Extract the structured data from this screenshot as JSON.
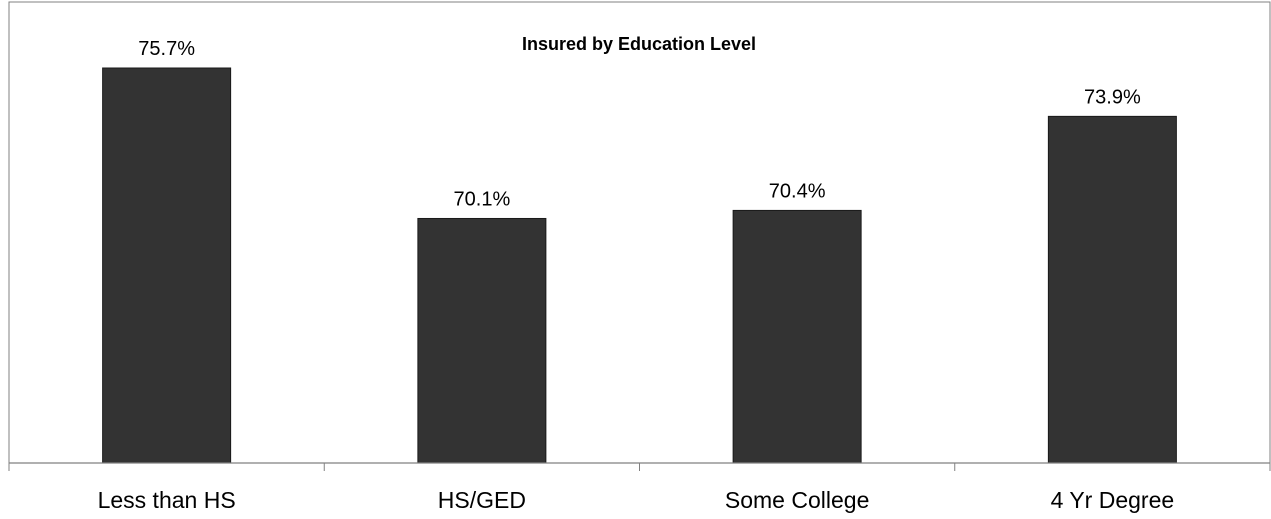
{
  "chart_data": {
    "type": "bar",
    "title": "Insured by Education Level",
    "xlabel": "",
    "ylabel": "",
    "categories": [
      "Less than HS",
      "HS/GED",
      "Some College",
      "4 Yr Degree"
    ],
    "values": [
      75.7,
      70.1,
      70.4,
      73.9
    ],
    "data_labels": [
      "75.7%",
      "70.1%",
      "70.4%",
      "73.9%"
    ],
    "ylim": [
      61,
      77
    ],
    "grid": false,
    "legend": "none",
    "colors": {
      "bar_fill": "#333333",
      "bar_stroke": "#1a1a1a",
      "axis": "#808080",
      "frame": "#808080"
    }
  }
}
